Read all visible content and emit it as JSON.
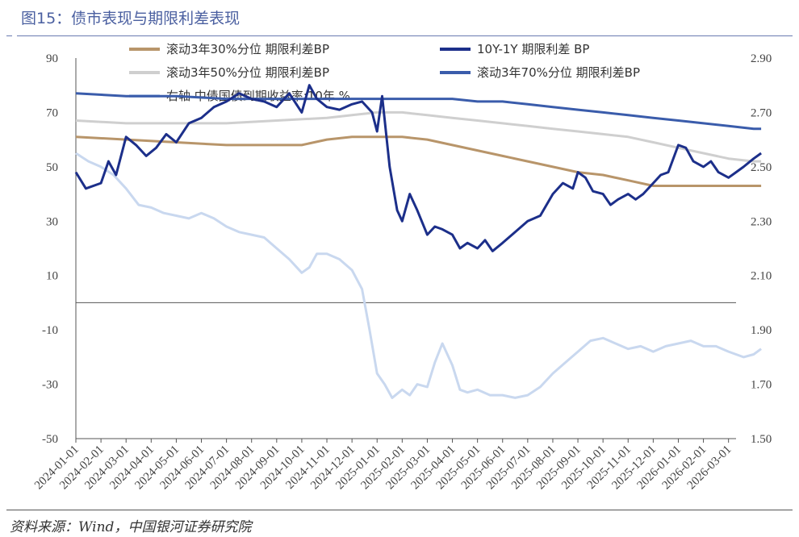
{
  "header": {
    "title": "图15：债市表现与期限利差表现"
  },
  "footer": {
    "source": "资料来源：Wind，中国银河证券研究院"
  },
  "colors": {
    "p30": "#b8956a",
    "spread": "#1c2f8a",
    "p50": "#cfcfcf",
    "p70": "#3a5cab",
    "yield": "#c9d8ef",
    "axis": "#555555"
  },
  "chart_data": {
    "type": "line",
    "title": "",
    "xlabel": "",
    "ylabel": "",
    "ylim": [
      -50,
      90
    ],
    "y_ticks": [
      90,
      70,
      50,
      30,
      10,
      -10,
      -30,
      -50
    ],
    "y2lim": [
      1.5,
      2.9
    ],
    "y2_ticks": [
      "2.90",
      "2.70",
      "2.50",
      "2.30",
      "2.10",
      "1.90",
      "1.70",
      "1.50"
    ],
    "x_ticks": [
      "2024-01-01",
      "2024-02-01",
      "2024-03-01",
      "2024-04-01",
      "2024-05-01",
      "2024-06-01",
      "2024-07-01",
      "2024-08-01",
      "2024-09-01",
      "2024-10-01",
      "2024-11-01",
      "2024-12-01",
      "2025-01-01",
      "2025-02-01",
      "2025-03-01",
      "2025-04-01",
      "2025-05-01",
      "2025-06-01",
      "2025-07-01",
      "2025-08-01",
      "2025-09-01",
      "2025-10-01",
      "2025-11-01",
      "2025-12-01",
      "2026-01-01",
      "2026-02-01",
      "2026-03-01"
    ],
    "legend": [
      {
        "key": "p30",
        "label": "滚动3年30%分位 期限利差BP"
      },
      {
        "key": "spread",
        "label": "10Y-1Y 期限利差 BP"
      },
      {
        "key": "p50",
        "label": "滚动3年50%分位 期限利差BP"
      },
      {
        "key": "p70",
        "label": "滚动3年70%分位 期限利差BP"
      },
      {
        "key": "yield",
        "label": "右轴 中债国债到期收益率:10年 %"
      }
    ],
    "series": [
      {
        "key": "spread",
        "axis": "left",
        "name": "10Y-1Y 期限利差 BP",
        "x": [
          0,
          0.4,
          1,
          1.3,
          1.6,
          2.0,
          2.4,
          2.8,
          3.2,
          3.6,
          4.0,
          4.5,
          5.0,
          5.5,
          6.0,
          6.5,
          7.0,
          7.5,
          8.0,
          8.5,
          9.0,
          9.3,
          9.6,
          10.0,
          10.5,
          11.0,
          11.4,
          11.8,
          12.0,
          12.2,
          12.5,
          12.8,
          13.0,
          13.3,
          13.6,
          14.0,
          14.3,
          14.6,
          15.0,
          15.3,
          15.6,
          16.0,
          16.3,
          16.6,
          17.0,
          17.5,
          18.0,
          18.5,
          19.0,
          19.4,
          19.8,
          20.0,
          20.3,
          20.6,
          21.0,
          21.3,
          21.6,
          22.0,
          22.3,
          22.6,
          23.0,
          23.3,
          23.6,
          24.0,
          24.3,
          24.6,
          25.0,
          25.3,
          25.6,
          26.0,
          26.3,
          26.6,
          27.0,
          27.3
        ],
        "values": [
          48,
          42,
          44,
          52,
          47,
          61,
          58,
          54,
          57,
          62,
          59,
          66,
          68,
          72,
          74,
          77,
          75,
          74,
          72,
          77,
          70,
          80,
          75,
          72,
          71,
          73,
          74,
          70,
          63,
          76,
          50,
          34,
          30,
          40,
          34,
          25,
          28,
          27,
          25,
          20,
          22,
          20,
          23,
          19,
          22,
          26,
          30,
          32,
          40,
          44,
          42,
          48,
          46,
          41,
          40,
          36,
          38,
          40,
          38,
          40,
          44,
          47,
          48,
          58,
          57,
          52,
          50,
          52,
          48,
          46,
          48,
          50,
          53,
          55
        ]
      },
      {
        "key": "p30",
        "axis": "left",
        "name": "滚动3年30%分位 期限利差BP",
        "x": [
          0,
          2,
          4,
          6,
          8,
          9,
          10,
          11,
          12,
          12.5,
          13,
          14,
          15,
          16,
          17,
          18,
          19,
          20,
          21,
          22,
          23,
          24,
          25,
          26,
          27,
          27.3
        ],
        "values": [
          61,
          60,
          59,
          58,
          58,
          58,
          60,
          61,
          61,
          61,
          61,
          60,
          58,
          56,
          54,
          52,
          50,
          48,
          47,
          45,
          43,
          43,
          43,
          43,
          43,
          43
        ]
      },
      {
        "key": "p50",
        "axis": "left",
        "name": "滚动3年50%分位 期限利差BP",
        "x": [
          0,
          2,
          4,
          6,
          8,
          10,
          11,
          12,
          13,
          14,
          15,
          16,
          17,
          18,
          19,
          20,
          21,
          22,
          23,
          24,
          25,
          26,
          27,
          27.3
        ],
        "values": [
          67,
          66,
          66,
          66,
          67,
          68,
          69,
          70,
          70,
          69,
          68,
          67,
          66,
          65,
          64,
          63,
          62,
          61,
          59,
          57,
          55,
          53,
          52,
          52
        ]
      },
      {
        "key": "p70",
        "axis": "left",
        "name": "滚动3年70%分位 期限利差BP",
        "x": [
          0,
          2,
          4,
          6,
          8,
          10,
          12,
          13,
          14,
          15,
          16,
          17,
          18,
          19,
          20,
          21,
          22,
          23,
          24,
          25,
          26,
          27,
          27.3
        ],
        "values": [
          77,
          76,
          76,
          75,
          75,
          75,
          75,
          75,
          75,
          75,
          74,
          74,
          73,
          72,
          71,
          70,
          69,
          68,
          67,
          66,
          65,
          64,
          64
        ]
      },
      {
        "key": "yield",
        "axis": "right",
        "name": "右轴 中债国债到期收益率:10年 %",
        "x": [
          0,
          0.5,
          1,
          1.5,
          2,
          2.5,
          3,
          3.5,
          4,
          4.5,
          5,
          5.5,
          6,
          6.5,
          7,
          7.5,
          8,
          8.5,
          9,
          9.3,
          9.6,
          10,
          10.5,
          11,
          11.4,
          11.7,
          12,
          12.3,
          12.6,
          13,
          13.3,
          13.6,
          14,
          14.3,
          14.6,
          15,
          15.3,
          15.6,
          16,
          16.5,
          17,
          17.5,
          18,
          18.5,
          19,
          19.5,
          20,
          20.5,
          21,
          21.5,
          22,
          22.5,
          23,
          23.5,
          24,
          24.5,
          25,
          25.5,
          26,
          26.3,
          26.6,
          27,
          27.3
        ],
        "values": [
          2.55,
          2.52,
          2.5,
          2.47,
          2.42,
          2.36,
          2.35,
          2.33,
          2.32,
          2.31,
          2.33,
          2.31,
          2.28,
          2.26,
          2.25,
          2.24,
          2.2,
          2.16,
          2.11,
          2.13,
          2.18,
          2.18,
          2.16,
          2.12,
          2.05,
          1.9,
          1.74,
          1.7,
          1.65,
          1.68,
          1.66,
          1.7,
          1.69,
          1.78,
          1.85,
          1.77,
          1.68,
          1.67,
          1.68,
          1.66,
          1.66,
          1.65,
          1.66,
          1.69,
          1.74,
          1.78,
          1.82,
          1.86,
          1.87,
          1.85,
          1.83,
          1.84,
          1.82,
          1.84,
          1.85,
          1.86,
          1.84,
          1.84,
          1.82,
          1.81,
          1.8,
          1.81,
          1.83
        ]
      }
    ]
  }
}
